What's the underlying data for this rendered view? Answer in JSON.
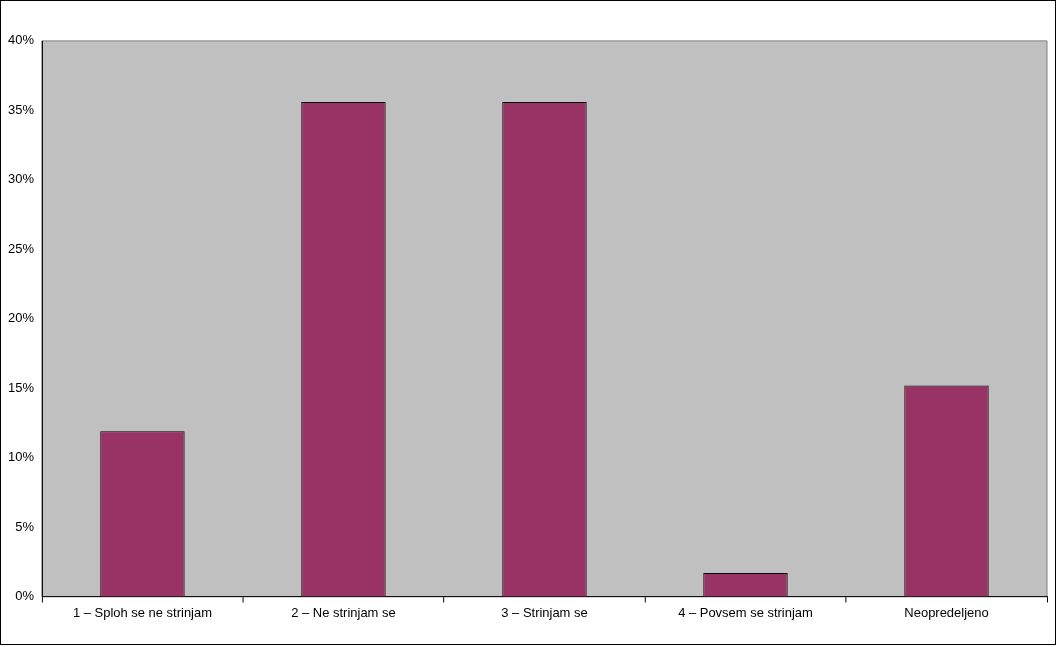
{
  "chart_data": {
    "type": "bar",
    "categories": [
      "1 – Sploh se ne strinjam",
      "2 – Ne strinjam se",
      "3 – Strinjam se",
      "4 – Povsem se strinjam",
      "Neopredeljeno"
    ],
    "values": [
      11.9,
      35.6,
      35.6,
      1.7,
      15.2
    ],
    "color": "#993366",
    "ylim": [
      0,
      40
    ],
    "yticks": [
      {
        "value": 0,
        "label": "0%"
      },
      {
        "value": 5,
        "label": "5%"
      },
      {
        "value": 10,
        "label": "10%"
      },
      {
        "value": 15,
        "label": "15%"
      },
      {
        "value": 20,
        "label": "20%"
      },
      {
        "value": 25,
        "label": "25%"
      },
      {
        "value": 30,
        "label": "30%"
      },
      {
        "value": 35,
        "label": "35%"
      },
      {
        "value": 40,
        "label": "40%"
      }
    ],
    "grid": false,
    "legend": false
  }
}
